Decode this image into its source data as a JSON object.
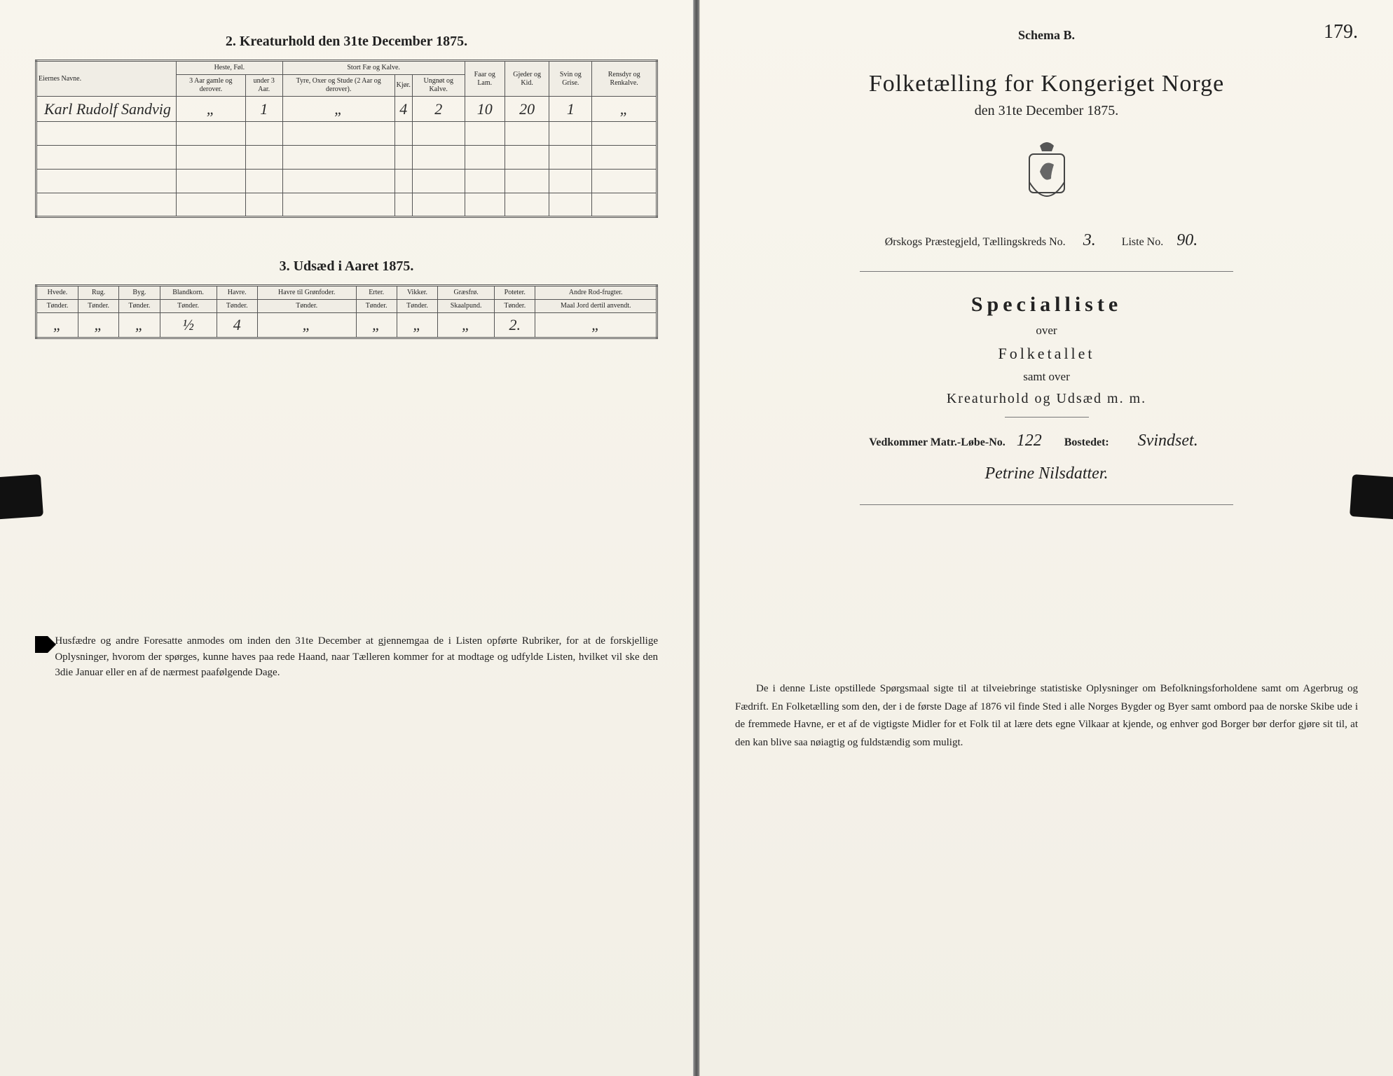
{
  "pageNumber": "179.",
  "left": {
    "section2": {
      "title": "2.  Kreaturhold den 31te December 1875.",
      "headers": {
        "owners": "Eiernes Navne.",
        "horses": "Heste, Føl.",
        "horses_a": "3 Aar gamle og derover.",
        "horses_b": "under 3 Aar.",
        "cattle": "Stort Fæ og Kalve.",
        "cattle_a": "Tyre, Oxer og Stude (2 Aar og derover).",
        "cattle_b": "Kjør.",
        "cattle_c": "Ungnøt og Kalve.",
        "sheep": "Faar og Lam.",
        "goats": "Gjeder og Kid.",
        "pigs": "Svin og Grise.",
        "reindeer": "Rensdyr og Renkalve."
      },
      "row": {
        "owner": "Karl Rudolf Sandvig",
        "h_a": "„",
        "h_b": "1",
        "c_a": "„",
        "c_b": "4",
        "c_c": "2",
        "sheep": "10",
        "goats": "20",
        "pigs": "1",
        "reindeer": "„"
      }
    },
    "section3": {
      "title": "3.  Udsæd i Aaret 1875.",
      "cols": [
        "Hvede.",
        "Rug.",
        "Byg.",
        "Blandkorn.",
        "Havre.",
        "Havre til Grønfoder.",
        "Erter.",
        "Vikker.",
        "Græsfrø.",
        "Poteter.",
        "Andre Rod-frugter."
      ],
      "unitRow": [
        "Tønder.",
        "Tønder.",
        "Tønder.",
        "Tønder.",
        "Tønder.",
        "Tønder.",
        "Tønder.",
        "Tønder.",
        "Skaalpund.",
        "Tønder.",
        "Maal Jord dertil anvendt."
      ],
      "vals": [
        "„",
        "„",
        "„",
        "½",
        "4",
        "„",
        "„",
        "„",
        "„",
        "2.",
        "„"
      ]
    },
    "footnote": "Husfædre og andre Foresatte anmodes om inden den 31te December at gjennemgaa de i Listen opførte Rubriker, for at de forskjellige Oplysninger, hvorom der spørges, kunne haves paa rede Haand, naar Tælleren kommer for at modtage og udfylde Listen, hvilket vil ske den 3die Januar eller en af de nærmest paafølgende Dage."
  },
  "right": {
    "schema": "Schema B.",
    "title": "Folketælling for Kongeriget Norge",
    "date": "den 31te December 1875.",
    "district": {
      "label_a": "Ørskogs Præstegjeld,  Tællingskreds No.",
      "kreds": "3.",
      "label_b": "Liste No.",
      "liste": "90."
    },
    "special": "Specialliste",
    "over": "over",
    "folketal": "Folketallet",
    "samt": "samt over",
    "kreatur": "Kreaturhold og Udsæd m. m.",
    "matr": {
      "label_a": "Vedkommer Matr.-Løbe-No.",
      "no": "122",
      "label_b": "Bostedet:",
      "sted": "Svindset.",
      "line2": "Petrine Nilsdatter."
    },
    "para": "De i denne Liste opstillede Spørgsmaal sigte til at tilveiebringe statistiske Oplysninger om Befolkningsforholdene samt om Agerbrug og Fædrift.  En Folketælling som den, der i de første Dage af 1876 vil finde Sted i alle Norges Bygder og Byer samt ombord paa de norske Skibe ude i de fremmede Havne, er et af de vigtigste Midler for et Folk til at lære dets egne Vilkaar at kjende, og enhver god Borger bør derfor gjøre sit til, at den kan blive saa nøiagtig og fuldstændig som muligt."
  }
}
